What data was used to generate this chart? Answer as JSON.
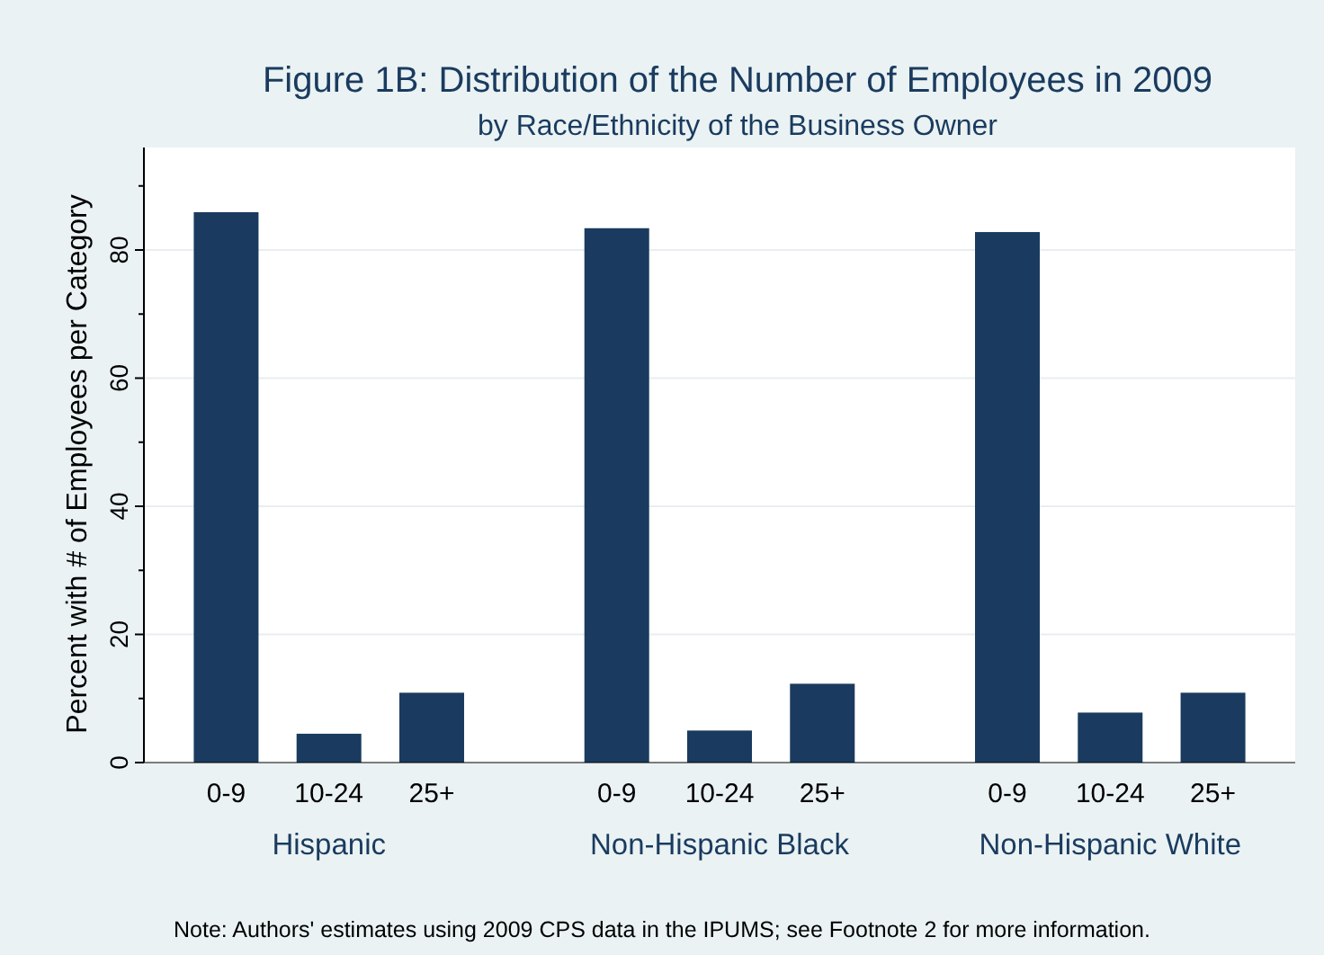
{
  "chart_data": {
    "type": "bar",
    "title": "Figure 1B: Distribution of the Number of Employees in 2009",
    "subtitle": "by Race/Ethnicity of the Business Owner",
    "ylabel": "Percent with # of Employees per Category",
    "categories": [
      "0-9",
      "10-24",
      "25+",
      "0-9",
      "10-24",
      "25+",
      "0-9",
      "10-24",
      "25+"
    ],
    "values": [
      85.9,
      4.5,
      10.9,
      83.4,
      5.0,
      12.3,
      82.8,
      7.8,
      10.9
    ],
    "color": "#1a3b5f",
    "ylim": [
      0,
      96
    ],
    "yticks": [
      0,
      {
        "value": 10,
        "label": null
      },
      20,
      {
        "value": 30,
        "label": null
      },
      40,
      {
        "value": 50,
        "label": null
      },
      60,
      {
        "value": 70,
        "label": null
      },
      80,
      {
        "value": 90,
        "label": null
      }
    ],
    "grid": "y",
    "annotations": [
      "Hispanic",
      "Non-Hispanic Black",
      "Non-Hispanic White",
      "Note: Authors' estimates using 2009 CPS data in the IPUMS; see Footnote 2 for more information."
    ]
  }
}
